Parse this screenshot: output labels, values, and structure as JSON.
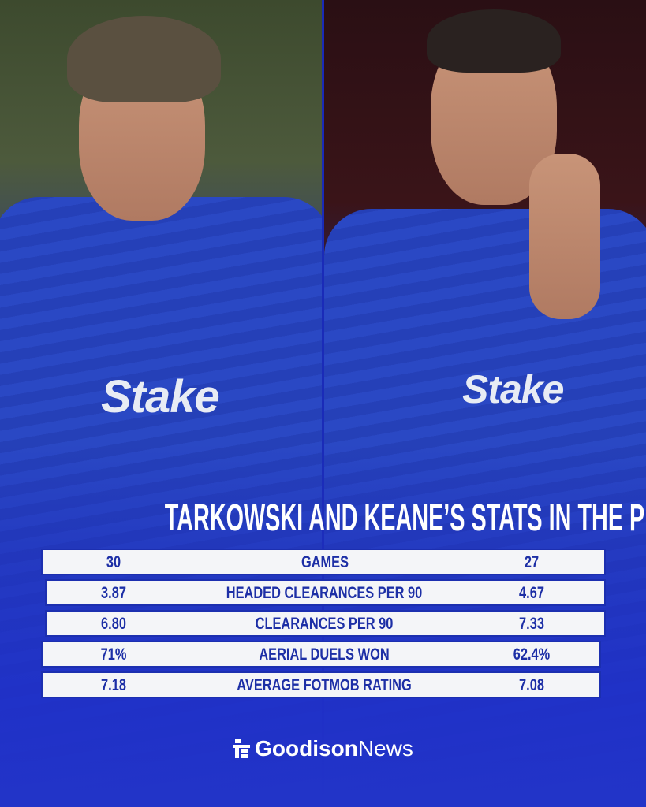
{
  "title": "TARKOWSKI AND KEANE’S STATS IN THE PL",
  "photos": {
    "left_shirt_sponsor": "Stake",
    "right_shirt_sponsor": "Stake"
  },
  "stats": [
    {
      "left": "30",
      "label": "GAMES",
      "right": "27"
    },
    {
      "left": "3.87",
      "label": "HEADED CLEARANCES PER 90",
      "right": "4.67"
    },
    {
      "left": "6.80",
      "label": "CLEARANCES PER 90",
      "right": "7.33"
    },
    {
      "left": "71%",
      "label": "AERIAL DUELS WON",
      "right": "62.4%"
    },
    {
      "left": "7.18",
      "label": "AVERAGE FOTMOB RATING",
      "right": "7.08"
    }
  ],
  "brand": {
    "bold": "Goodison",
    "regular": "News"
  },
  "colors": {
    "primary_blue": "#1f2fa8",
    "row_bg": "#f4f5f8",
    "text_blue": "#1d2fa6"
  }
}
